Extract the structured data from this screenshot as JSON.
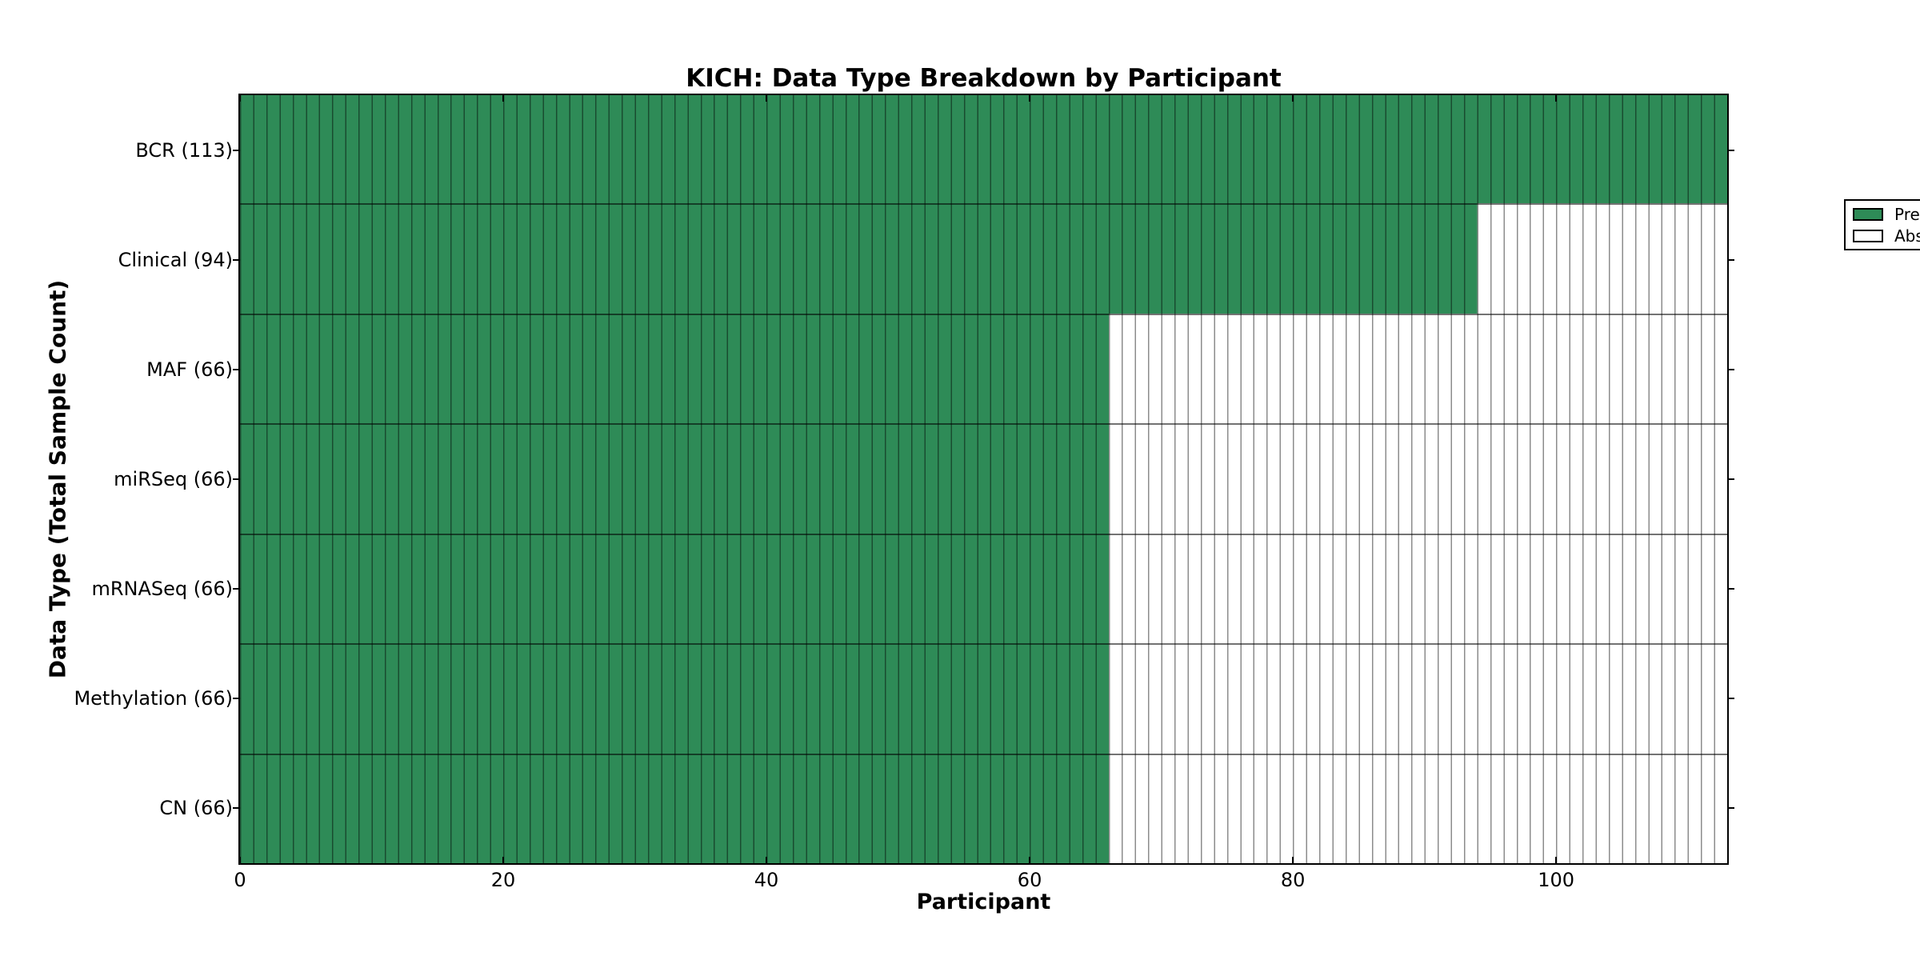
{
  "chart_data": {
    "type": "heatmap",
    "title": "KICH: Data Type Breakdown by Participant",
    "xlabel": "Participant",
    "ylabel": "Data Type (Total Sample Count)",
    "xlim": [
      0,
      113
    ],
    "x_ticks": [
      0,
      20,
      40,
      60,
      80,
      100
    ],
    "total_participants": 113,
    "rows": [
      {
        "name": "BCR",
        "total": 113,
        "present": 113,
        "display": "BCR (113)"
      },
      {
        "name": "Clinical",
        "total": 94,
        "present": 94,
        "display": "Clinical (94)"
      },
      {
        "name": "MAF",
        "total": 66,
        "present": 66,
        "display": "MAF (66)"
      },
      {
        "name": "miRSeq",
        "total": 66,
        "present": 66,
        "display": "miRSeq (66)"
      },
      {
        "name": "mRNASeq",
        "total": 66,
        "present": 66,
        "display": "mRNASeq (66)"
      },
      {
        "name": "Methylation",
        "total": 66,
        "present": 66,
        "display": "Methylation (66)"
      },
      {
        "name": "CN",
        "total": 66,
        "present": 66,
        "display": "CN (66)"
      }
    ],
    "legend_entries": [
      {
        "label": "Present",
        "color": "#2e8b57"
      },
      {
        "label": "Absent",
        "color": "#ffffff"
      }
    ],
    "colors": {
      "present": "#2e8b57",
      "absent": "#ffffff",
      "axis": "#000000"
    },
    "grid": "cell-edges",
    "legend_position": "upper-right"
  }
}
